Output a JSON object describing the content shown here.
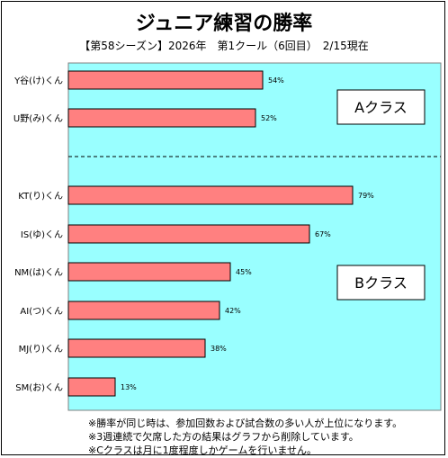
{
  "chart_data": {
    "type": "bar",
    "orientation": "horizontal",
    "title": "ジュニア練習の勝率",
    "subtitle": "【第58シーズン】2026年　第1クール（6回目）　2/15現在",
    "xlim": [
      0,
      100
    ],
    "unit_suffix": "%",
    "categories": [
      "Y谷(け)くん",
      "U野(み)くん",
      "KT(り)くん",
      "IS(ゆ)くん",
      "NM(は)くん",
      "AI(つ)くん",
      "MJ(り)くん",
      "SM(お)くん"
    ],
    "values": [
      54,
      52,
      79,
      67,
      45,
      42,
      38,
      13
    ],
    "groups": [
      {
        "label": "Aクラス",
        "members": [
          0,
          1
        ]
      },
      {
        "label": "Bクラス",
        "members": [
          2,
          3,
          4,
          5,
          6,
          7
        ]
      }
    ],
    "colors": {
      "plot_background": "#99ffff",
      "bar_fill": "#ff8080",
      "bar_stroke": "#000000"
    }
  },
  "notes": [
    "※勝率が同じ時は、参加回数および試合数の多い人が上位になります。",
    "※3週連続で欠席した方の結果はグラフから削除しています。",
    "※Cクラスは月に1度程度しかゲームを行いません。"
  ]
}
